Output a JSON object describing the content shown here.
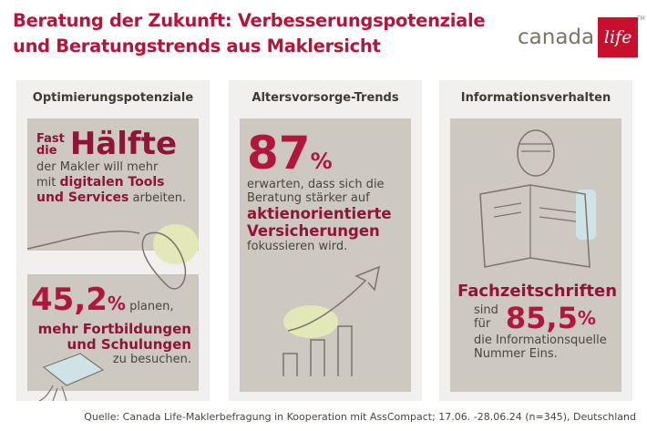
{
  "title_line1": "Beratung der Zukunft: Verbesserungspotenziale",
  "title_line2": "und Beratungstrends aus Maklersicht",
  "logo": {
    "word": "canada",
    "mark": "life",
    "tm": "TM"
  },
  "panels": [
    {
      "heading": "Optimierungspotenziale",
      "box1": {
        "small1": "Fast",
        "small2": "die",
        "big": "Hälfte",
        "line1": "der Makler will mehr",
        "line2_pre": "mit ",
        "line2_bold": "digitalen Tools",
        "line3_bold": "und Services",
        "line3_post": " arbeiten."
      },
      "box2": {
        "number": "45,2",
        "percent": "%",
        "post": " planen,",
        "bold1": "mehr Fortbildungen",
        "bold2": "und Schulungen",
        "line": "zu besuchen."
      }
    },
    {
      "heading": "Altersvorsorge-Trends",
      "number": "87",
      "percent": "%",
      "line1": "erwarten, dass sich die",
      "line2": "Beratung stärker auf",
      "bold1": "aktienorientierte",
      "bold2": "Versicherungen",
      "line3": "fokussieren wird."
    },
    {
      "heading": "Informationsverhalten",
      "bold": "Fachzeitschriften",
      "pre1": "sind",
      "pre2": "für",
      "number": "85,5",
      "percent": "%",
      "line1": "die Informationsquelle",
      "line2": "Nummer Eins."
    }
  ],
  "source": "Quelle: Canada Life-Maklerbefragung in Kooperation mit AssCompact; 17.06. -28.06.24 (n=345), Deutschland",
  "colors": {
    "accent": "#b0173a",
    "box": "#cdc8c0",
    "panel": "#f1f0ee"
  }
}
